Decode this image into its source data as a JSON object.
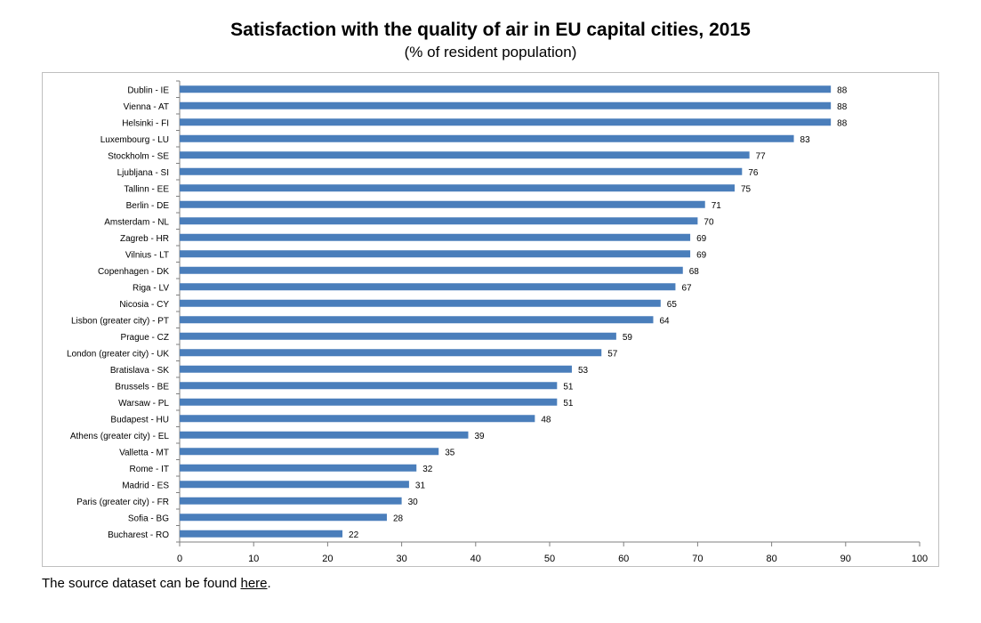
{
  "title": "Satisfaction with the quality of air in EU capital cities, 2015",
  "subtitle": "(% of resident population)",
  "footer": {
    "prefix": "The source dataset can be found ",
    "link_text": "here",
    "suffix": "."
  },
  "colors": {
    "bar": "#4a7ebb",
    "axis": "#7f7f7f"
  },
  "chart_data": {
    "type": "bar",
    "orientation": "horizontal",
    "title": "Satisfaction with the quality of air in EU capital cities, 2015",
    "subtitle": "(% of resident population)",
    "xlim": [
      0,
      100
    ],
    "xticks": [
      0,
      10,
      20,
      30,
      40,
      50,
      60,
      70,
      80,
      90,
      100
    ],
    "grid": false,
    "legend": "none",
    "categories": [
      "Dublin - IE",
      "Vienna - AT",
      "Helsinki - FI",
      "Luxembourg - LU",
      "Stockholm - SE",
      "Ljubljana - SI",
      "Tallinn - EE",
      "Berlin - DE",
      "Amsterdam - NL",
      "Zagreb - HR",
      "Vilnius - LT",
      "Copenhagen - DK",
      "Riga - LV",
      "Nicosia - CY",
      "Lisbon (greater city) - PT",
      "Prague - CZ",
      "London (greater city) - UK",
      "Bratislava - SK",
      "Brussels - BE",
      "Warsaw - PL",
      "Budapest - HU",
      "Athens (greater city) - EL",
      "Valletta - MT",
      "Rome - IT",
      "Madrid - ES",
      "Paris (greater city) - FR",
      "Sofia - BG",
      "Bucharest - RO"
    ],
    "values": [
      88,
      88,
      88,
      83,
      77,
      76,
      75,
      71,
      70,
      69,
      69,
      68,
      67,
      65,
      64,
      59,
      57,
      53,
      51,
      51,
      48,
      39,
      35,
      32,
      31,
      30,
      28,
      22
    ]
  }
}
